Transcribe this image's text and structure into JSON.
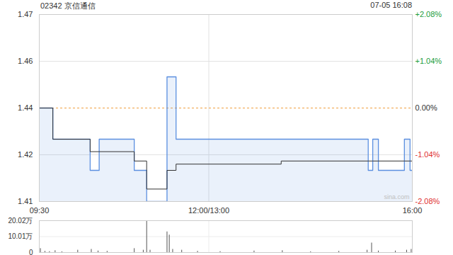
{
  "chart_data": [
    {
      "type": "line",
      "title": "02342 京信通信",
      "subtitle": "07-05 16:08",
      "watermark": "sina.com",
      "x": [
        0,
        12,
        45,
        53,
        84,
        95,
        113,
        121,
        214,
        291,
        295,
        300,
        323,
        328,
        330
      ],
      "series": [
        {
          "color": "#5b8fe0",
          "line_style": "step",
          "values": [
            1.44,
            1.43,
            1.42,
            1.43,
            1.42,
            1.41,
            1.45,
            1.43,
            1.43,
            1.42,
            1.43,
            1.42,
            1.43,
            1.42,
            1.42
          ]
        },
        {
          "color": "#333333",
          "line_style": "step",
          "values": [
            1.44,
            1.43,
            1.426,
            1.426,
            1.423,
            1.414,
            1.42,
            1.422,
            1.423,
            1.423,
            1.423,
            1.423,
            1.423,
            1.423,
            1.423
          ]
        }
      ],
      "reference_line": 1.44,
      "xlim": [
        0,
        330
      ],
      "xticks": [
        {
          "value": 0,
          "label": "09:30"
        },
        {
          "value": 150,
          "label": "12:00/13:00"
        },
        {
          "value": 330,
          "label": "16:00"
        }
      ],
      "ylim": [
        1.41,
        1.47
      ],
      "yticks": [
        1.41,
        {
          "value": 1.425,
          "label": "1.42"
        },
        1.44,
        {
          "value": 1.455,
          "label": "1.46"
        },
        1.47
      ],
      "y2lim": [
        -2.08,
        2.08
      ],
      "y2ticks": [
        {
          "value": -2.08,
          "label": "-2.08%"
        },
        {
          "value": -1.04,
          "label": "-1.04%"
        },
        {
          "value": 0,
          "label": "0.00%"
        },
        {
          "value": 1.04,
          "label": "+1.04%"
        },
        {
          "value": 2.08,
          "label": "+2.08%"
        }
      ],
      "grid": true
    },
    {
      "type": "bar",
      "x": [
        1,
        5,
        9,
        14,
        20,
        34,
        46,
        52,
        60,
        84,
        92,
        95,
        98,
        113,
        115,
        118,
        126,
        140,
        160,
        190,
        215,
        240,
        265,
        290,
        294,
        300,
        315,
        325,
        329
      ],
      "values": [
        2.5,
        0.8,
        0.6,
        1.2,
        0.5,
        1.5,
        2,
        1,
        0.8,
        2.5,
        1.5,
        20.02,
        1.5,
        13,
        11,
        2,
        1.5,
        0.8,
        0.6,
        1,
        1.2,
        0.5,
        0.8,
        1.5,
        6,
        1,
        1,
        1.5,
        2
      ],
      "color": "#555555",
      "xlim": [
        0,
        330
      ],
      "ylim": [
        0,
        20.02
      ],
      "yticks": [
        0,
        {
          "value": 10.01,
          "label": "10.01万"
        },
        {
          "value": 20.02,
          "label": "20.02万"
        }
      ],
      "grid": true
    }
  ]
}
